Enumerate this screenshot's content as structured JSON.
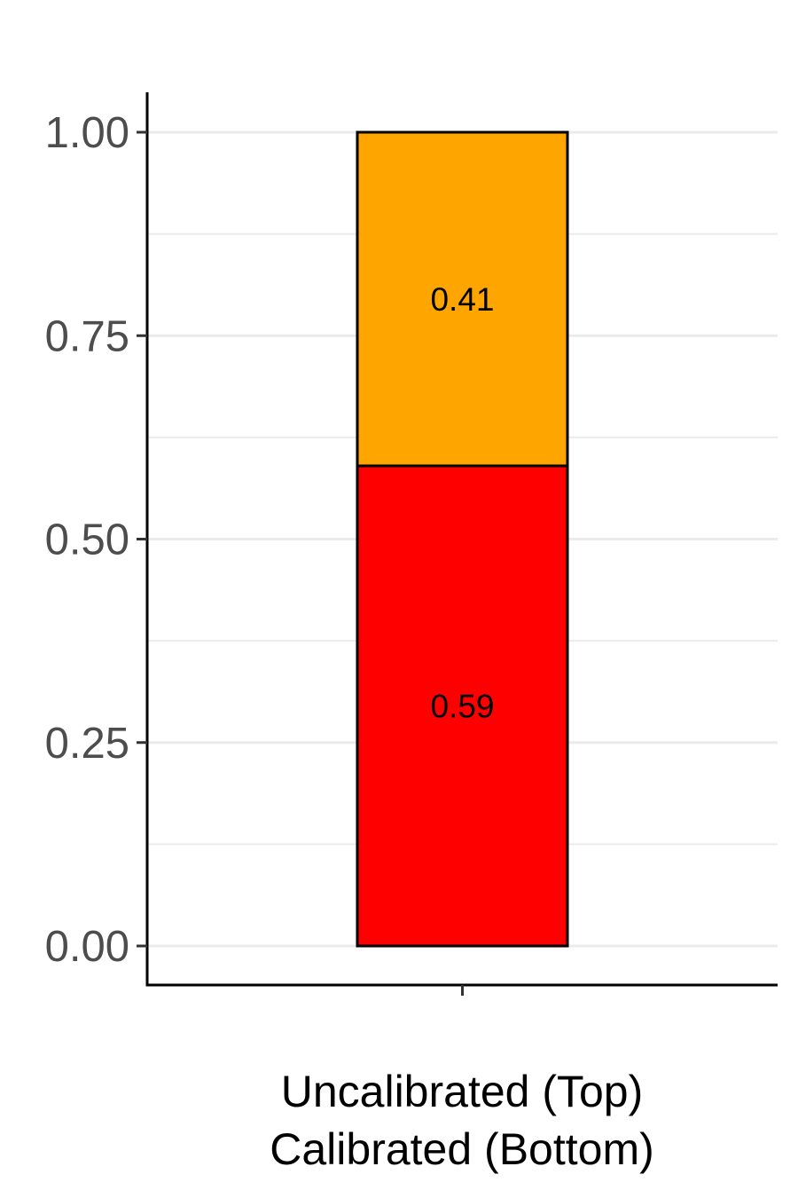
{
  "chart_data": {
    "type": "bar",
    "stacked": true,
    "categories": [
      ""
    ],
    "series": [
      {
        "values": [
          0.59
        ],
        "label": "0.59",
        "color": "#ff0000"
      },
      {
        "values": [
          0.41
        ],
        "label": "0.41",
        "color": "#ffa500"
      }
    ],
    "y_ticks": [
      "0.00",
      "0.25",
      "0.50",
      "0.75",
      "1.00"
    ],
    "ylim": [
      -0.05,
      1.05
    ],
    "xlabel_lines": [
      "Uncalibrated (Top)",
      "Calibrated (Bottom)"
    ],
    "grid": true
  }
}
